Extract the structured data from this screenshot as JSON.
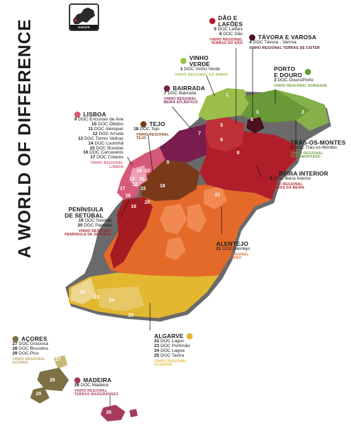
{
  "title": "A WORLD OF DIFFERENCE",
  "inset": {
    "label": "EUROPE",
    "icon": "europe-locator-icon"
  },
  "colors": {
    "vinho_verde": "#9bbf4a",
    "douro": "#6a9a38",
    "tavora": "#4a1020",
    "tras": "#6e9a3c",
    "dao": "#b0202e",
    "beira_interior": "#b01e2a",
    "bairrada": "#7a1d4e",
    "tejo": "#7a3a1a",
    "lisboa": "#d65a78",
    "setubal": "#a41c22",
    "alentejo": "#e46a2a",
    "algarve": "#e2b830",
    "acores": "#7d7044",
    "madeira": "#a63a5a"
  },
  "regions": [
    {
      "key": "dao",
      "title": "DÃO E LAFÕES",
      "docs": [
        "5 DOC Lafões",
        "6 DOC Dão"
      ],
      "vr": "VINHO REGIONAL TERRAS DO DÃO"
    },
    {
      "key": "tavora",
      "title": "TÁVORA E VAROSA",
      "docs": [
        "4 DOC Távora - Varosa"
      ],
      "vr": "VINHO REGIONAL TERRAS DE CISTER"
    },
    {
      "key": "vinho_verde",
      "title": "VINHO VERDE",
      "docs": [
        "1 DOC Vinho Verde"
      ],
      "vr": "VINHO REGIONAL DO MINHO"
    },
    {
      "key": "douro",
      "title": "PORTO E DOURO",
      "docs": [
        "3 DOC Douro/Porto"
      ],
      "vr": "VINHO REGIONAL DURIENSE"
    },
    {
      "key": "bairrada",
      "title": "BAIRRADA",
      "docs": [
        "7 DOC Bairrada"
      ],
      "vr": "VINHO REGIONAL BEIRA ATLÂNTICO"
    },
    {
      "key": "lisboa",
      "title": "LISBOA",
      "docs": [
        "9 DOC Encostas de Aire",
        "10 DOC Óbidos",
        "11 DOC Alenquer",
        "12 DOC Arruda",
        "13 DOC Torres Vedras",
        "14 DOC Lourinhã",
        "15 DOC Bucelas",
        "16 DOC Carcavelos",
        "17 DOC Colares"
      ],
      "vr": "VINHO REGIONAL LISBOA"
    },
    {
      "key": "tejo",
      "title": "TEJO",
      "docs": [
        "18 DOC Tejo"
      ],
      "vr": "VINHO REGIONAL TEJO"
    },
    {
      "key": "tras",
      "title": "TRÁS-OS-MONTES",
      "docs": [
        "2 DOC Trás-os-Montes"
      ],
      "vr": "VINHO REGIONAL TRÁ SMONTANO"
    },
    {
      "key": "beira_interior",
      "title": "BEIRA INTERIOR",
      "docs": [
        "8 DOC Beira Interior"
      ],
      "vr": "VINHO REGIONAL TERRAS DA BEIRA"
    },
    {
      "key": "setubal",
      "title": "PENÍNSULA DE SETÚBAL",
      "docs": [
        "19 DOC Setúbal",
        "20 DOC Palmela"
      ],
      "vr": "VINHO REGIONAL PENÍNSULA DE SETÚBAL"
    },
    {
      "key": "alentejo",
      "title": "ALENTEJO",
      "docs": [
        "21 DOC Alentejo"
      ],
      "vr": "VINHO REGIONAL ALENTEJANO"
    },
    {
      "key": "algarve",
      "title": "ALGARVE",
      "docs": [
        "22 DOC Lagos",
        "23 DOC Portimão",
        "24 DOC Lagoa",
        "25 DOC Tavira"
      ],
      "vr": "VINHO REGIONAL ALGARVE"
    },
    {
      "key": "acores",
      "title": "AÇORES",
      "docs": [
        "27 DOC Graciosa",
        "28 DOC Biscoitos",
        "29 DOC Pico"
      ],
      "vr": "VINHO REGIONAL AÇORES"
    },
    {
      "key": "madeira",
      "title": "MADEIRA",
      "docs": [
        "26 DOC Madeira"
      ],
      "vr": "VINHO REGIONAL TERRAS MADEIRENSES"
    }
  ],
  "map_numbers": [
    "1",
    "2",
    "3",
    "4",
    "5",
    "6",
    "7",
    "8",
    "9",
    "10",
    "11",
    "12",
    "13",
    "14",
    "15",
    "16",
    "17",
    "18",
    "19",
    "20",
    "21",
    "22",
    "23",
    "24",
    "25",
    "26",
    "27",
    "28",
    "29"
  ]
}
